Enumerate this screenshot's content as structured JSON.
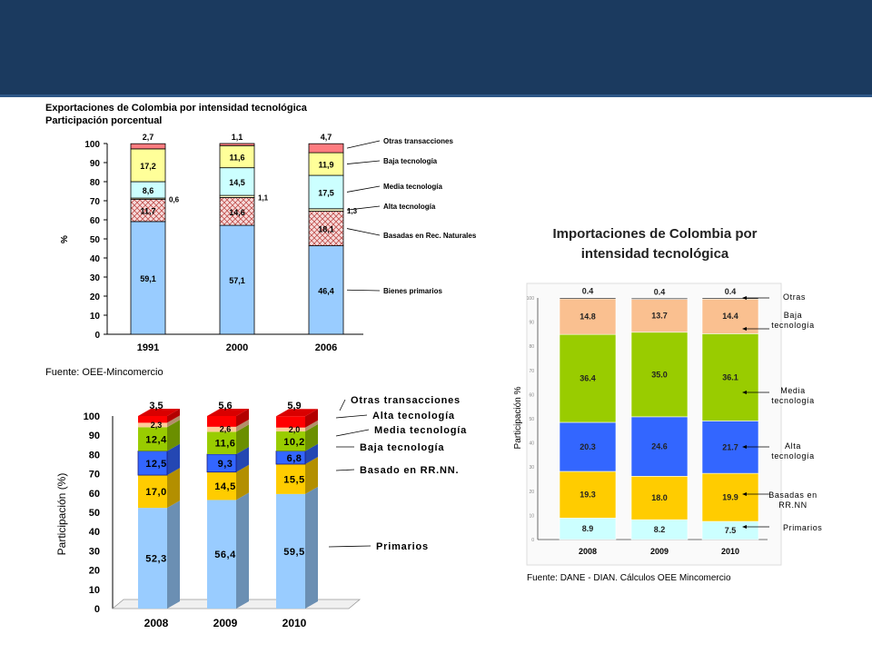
{
  "header": {
    "color": "#1b3a5f"
  },
  "chart_data": [
    {
      "type": "bar",
      "stacked": true,
      "title": "Exportaciones de Colombia por intensidad tecnológica",
      "subtitle": "Participación porcentual",
      "ylabel": "%",
      "ylim": [
        0,
        100
      ],
      "yticks": [
        "0",
        "10",
        "20",
        "30",
        "40",
        "50",
        "60",
        "70",
        "80",
        "90",
        "100"
      ],
      "categories": [
        "1991",
        "2000",
        "2006"
      ],
      "series": [
        {
          "name": "Bienes primarios",
          "values": [
            59.1,
            57.1,
            46.4
          ],
          "labels": [
            "59,1",
            "57,1",
            "46,4"
          ],
          "color": "#99ccff"
        },
        {
          "name": "Basadas en Rec. Naturales",
          "values": [
            11.7,
            14.6,
            18.1
          ],
          "labels": [
            "11,7",
            "14,6",
            "18,1"
          ],
          "color": "#f7dcdc"
        },
        {
          "name": "Alta tecnología",
          "values": [
            0.6,
            1.1,
            1.3
          ],
          "labels": [
            "0,6",
            "1,1",
            "1,3"
          ],
          "color": "#ffffcc"
        },
        {
          "name": "Media tecnología",
          "values": [
            8.6,
            14.5,
            17.5
          ],
          "labels": [
            "8,6",
            "14,5",
            "17,5"
          ],
          "color": "#ccffff"
        },
        {
          "name": "Baja tecnología",
          "values": [
            17.2,
            11.6,
            11.9
          ],
          "labels": [
            "17,2",
            "11,6",
            "11,9"
          ],
          "color": "#ffff99"
        },
        {
          "name": "Otras transacciones",
          "values": [
            2.7,
            1.1,
            4.7
          ],
          "labels": [
            "2,7",
            "1,1",
            "4,7"
          ],
          "color": "#ff7c80"
        }
      ],
      "source": "Fuente: OEE-Mincomercio"
    },
    {
      "type": "bar",
      "stacked": true,
      "ylabel": "Participación (%)",
      "ylim": [
        0,
        100
      ],
      "yticks": [
        "0",
        "10",
        "20",
        "30",
        "40",
        "50",
        "60",
        "70",
        "80",
        "90",
        "100"
      ],
      "categories": [
        "2008",
        "2009",
        "2010"
      ],
      "series": [
        {
          "name": "Primarios",
          "values": [
            52.3,
            56.4,
            59.5
          ],
          "labels": [
            "52,3",
            "56,4",
            "59,5"
          ],
          "color": "#99ccff"
        },
        {
          "name": "Basado en RR.NN.",
          "values": [
            17.0,
            14.5,
            15.5
          ],
          "labels": [
            "17,0",
            "14,5",
            "15,5"
          ],
          "color": "#ffcc00"
        },
        {
          "name": "Baja tecnología",
          "values": [
            12.5,
            9.3,
            6.8
          ],
          "labels": [
            "12,5",
            "9,3",
            "6,8"
          ],
          "color": "#3366ff"
        },
        {
          "name": "Media tecnología",
          "values": [
            12.4,
            11.6,
            10.2
          ],
          "labels": [
            "12,4",
            "11,6",
            "10,2"
          ],
          "color": "#99cc00"
        },
        {
          "name": "Alta tecnología",
          "values": [
            2.3,
            2.6,
            2.0
          ],
          "labels": [
            "2,3",
            "2,6",
            "2,0"
          ],
          "color": "#ffcc99"
        },
        {
          "name": "Otras transacciones",
          "values": [
            3.5,
            5.6,
            5.9
          ],
          "labels": [
            "3,5",
            "5,6",
            "5,9"
          ],
          "color": "#ff0000"
        }
      ]
    },
    {
      "type": "bar",
      "stacked": true,
      "title": "Importaciones de Colombia por intensidad tecnológica",
      "ylabel": "Participación %",
      "ylim": [
        0,
        100
      ],
      "yticks": [
        "0",
        "10",
        "20",
        "30",
        "40",
        "50",
        "60",
        "70",
        "80",
        "90",
        "100"
      ],
      "categories": [
        "2008",
        "2009",
        "2010"
      ],
      "series": [
        {
          "name": "Primarios",
          "values": [
            8.9,
            8.2,
            7.5
          ],
          "labels": [
            "8.9",
            "8.2",
            "7.5"
          ],
          "color": "#ccffff"
        },
        {
          "name": "Basadas en RR.NN",
          "values": [
            19.3,
            18.0,
            19.9
          ],
          "labels": [
            "19.3",
            "18.0",
            "19.9"
          ],
          "color": "#ffcc00"
        },
        {
          "name": "Alta tecnología",
          "values": [
            20.3,
            24.6,
            21.7
          ],
          "labels": [
            "20.3",
            "24.6",
            "21.7"
          ],
          "color": "#3366ff"
        },
        {
          "name": "Media tecnología",
          "values": [
            36.4,
            35.0,
            36.1
          ],
          "labels": [
            "36.4",
            "35.0",
            "36.1"
          ],
          "color": "#99cc00"
        },
        {
          "name": "Baja tecnología",
          "values": [
            14.8,
            13.7,
            14.4
          ],
          "labels": [
            "14.8",
            "13.7",
            "14.4"
          ],
          "color": "#fac090"
        },
        {
          "name": "Otras",
          "values": [
            0.4,
            0.4,
            0.4
          ],
          "labels": [
            "0.4",
            "0.4",
            "0.4"
          ],
          "color": "#000000"
        }
      ],
      "source": "Fuente: DANE - DIAN. Cálculos OEE Mincomercio"
    }
  ]
}
